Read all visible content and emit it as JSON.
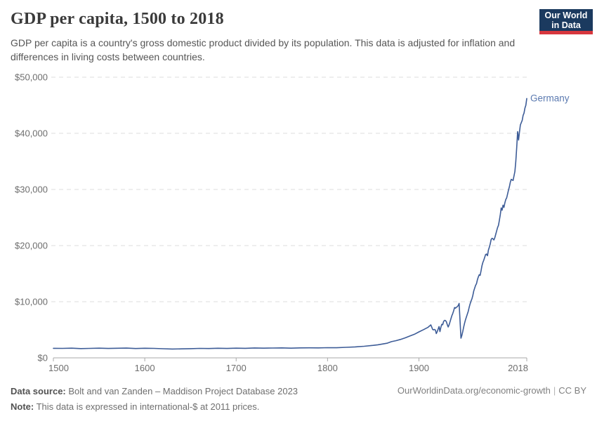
{
  "header": {
    "title": "GDP per capita, 1500 to 2018",
    "subtitle": "GDP per capita is a country's gross domestic product divided by its population. This data is adjusted for inflation and differences in living costs between countries.",
    "logo": {
      "line1": "Our World",
      "line2": "in Data",
      "bg_color": "#1b3a5f",
      "accent_color": "#d7373e"
    }
  },
  "chart_data": {
    "type": "line",
    "title": "GDP per capita, 1500 to 2018",
    "xlabel": "",
    "ylabel": "",
    "xlim": [
      1500,
      2018
    ],
    "ylim": [
      0,
      50000
    ],
    "grid": "horizontal-dashed",
    "x_ticks": [
      1500,
      1600,
      1700,
      1800,
      1900,
      2018
    ],
    "x_tick_labels": [
      "1500",
      "1600",
      "1700",
      "1800",
      "1900",
      "2018"
    ],
    "y_ticks": [
      0,
      10000,
      20000,
      30000,
      40000,
      50000
    ],
    "y_tick_labels": [
      "$0",
      "$10,000",
      "$20,000",
      "$30,000",
      "$40,000",
      "$50,000"
    ],
    "line_color": "#3d5c97",
    "label_color": "#5b7ab0",
    "grid_color": "#dcdcdc",
    "axis_color": "#a8a8a8",
    "tick_text_color": "#6e6e6e",
    "legend_position": "end-of-line",
    "series": [
      {
        "name": "Germany",
        "unit": "international-$ at 2011 prices",
        "points": [
          [
            1500,
            1700
          ],
          [
            1510,
            1690
          ],
          [
            1520,
            1720
          ],
          [
            1530,
            1650
          ],
          [
            1540,
            1690
          ],
          [
            1550,
            1730
          ],
          [
            1560,
            1670
          ],
          [
            1570,
            1710
          ],
          [
            1580,
            1740
          ],
          [
            1590,
            1660
          ],
          [
            1600,
            1710
          ],
          [
            1610,
            1690
          ],
          [
            1620,
            1630
          ],
          [
            1630,
            1570
          ],
          [
            1640,
            1600
          ],
          [
            1650,
            1640
          ],
          [
            1660,
            1690
          ],
          [
            1670,
            1660
          ],
          [
            1680,
            1710
          ],
          [
            1690,
            1670
          ],
          [
            1700,
            1730
          ],
          [
            1710,
            1700
          ],
          [
            1720,
            1760
          ],
          [
            1730,
            1720
          ],
          [
            1740,
            1750
          ],
          [
            1750,
            1770
          ],
          [
            1760,
            1730
          ],
          [
            1770,
            1770
          ],
          [
            1780,
            1790
          ],
          [
            1790,
            1770
          ],
          [
            1800,
            1810
          ],
          [
            1810,
            1800
          ],
          [
            1820,
            1870
          ],
          [
            1830,
            1950
          ],
          [
            1840,
            2060
          ],
          [
            1850,
            2230
          ],
          [
            1855,
            2320
          ],
          [
            1860,
            2460
          ],
          [
            1865,
            2600
          ],
          [
            1870,
            2890
          ],
          [
            1875,
            3060
          ],
          [
            1880,
            3290
          ],
          [
            1885,
            3560
          ],
          [
            1890,
            3890
          ],
          [
            1895,
            4200
          ],
          [
            1900,
            4630
          ],
          [
            1905,
            5020
          ],
          [
            1910,
            5450
          ],
          [
            1913,
            5880
          ],
          [
            1914,
            5480
          ],
          [
            1915,
            5060
          ],
          [
            1916,
            4990
          ],
          [
            1917,
            5060
          ],
          [
            1918,
            4950
          ],
          [
            1919,
            4320
          ],
          [
            1920,
            4680
          ],
          [
            1921,
            5130
          ],
          [
            1922,
            5570
          ],
          [
            1923,
            4680
          ],
          [
            1924,
            5440
          ],
          [
            1925,
            5980
          ],
          [
            1926,
            5900
          ],
          [
            1927,
            6490
          ],
          [
            1928,
            6680
          ],
          [
            1929,
            6650
          ],
          [
            1930,
            6440
          ],
          [
            1931,
            5940
          ],
          [
            1932,
            5500
          ],
          [
            1933,
            5860
          ],
          [
            1934,
            6400
          ],
          [
            1935,
            6950
          ],
          [
            1936,
            7490
          ],
          [
            1937,
            7890
          ],
          [
            1938,
            8380
          ],
          [
            1939,
            8960
          ],
          [
            1940,
            8850
          ],
          [
            1941,
            9020
          ],
          [
            1942,
            9100
          ],
          [
            1943,
            9320
          ],
          [
            1944,
            9700
          ],
          [
            1945,
            6600
          ],
          [
            1946,
            3500
          ],
          [
            1947,
            4000
          ],
          [
            1948,
            4700
          ],
          [
            1949,
            5500
          ],
          [
            1950,
            6200
          ],
          [
            1951,
            6800
          ],
          [
            1952,
            7300
          ],
          [
            1953,
            7800
          ],
          [
            1954,
            8300
          ],
          [
            1955,
            9000
          ],
          [
            1956,
            9600
          ],
          [
            1957,
            10100
          ],
          [
            1958,
            10500
          ],
          [
            1959,
            11100
          ],
          [
            1960,
            11900
          ],
          [
            1961,
            12400
          ],
          [
            1962,
            12900
          ],
          [
            1963,
            13200
          ],
          [
            1964,
            13900
          ],
          [
            1965,
            14400
          ],
          [
            1966,
            14800
          ],
          [
            1967,
            14700
          ],
          [
            1968,
            15500
          ],
          [
            1969,
            16400
          ],
          [
            1970,
            17000
          ],
          [
            1971,
            17400
          ],
          [
            1972,
            17900
          ],
          [
            1973,
            18400
          ],
          [
            1974,
            18500
          ],
          [
            1975,
            18200
          ],
          [
            1976,
            19200
          ],
          [
            1977,
            19700
          ],
          [
            1978,
            20300
          ],
          [
            1979,
            21100
          ],
          [
            1980,
            21300
          ],
          [
            1981,
            21200
          ],
          [
            1982,
            21000
          ],
          [
            1983,
            21400
          ],
          [
            1984,
            22000
          ],
          [
            1985,
            22600
          ],
          [
            1986,
            23200
          ],
          [
            1987,
            23600
          ],
          [
            1988,
            24500
          ],
          [
            1989,
            25500
          ],
          [
            1990,
            26700
          ],
          [
            1991,
            26300
          ],
          [
            1992,
            27200
          ],
          [
            1993,
            26800
          ],
          [
            1994,
            27600
          ],
          [
            1995,
            28200
          ],
          [
            1996,
            28500
          ],
          [
            1997,
            29200
          ],
          [
            1998,
            29900
          ],
          [
            1999,
            30500
          ],
          [
            2000,
            31300
          ],
          [
            2001,
            31800
          ],
          [
            2002,
            31700
          ],
          [
            2003,
            31600
          ],
          [
            2004,
            32400
          ],
          [
            2005,
            33200
          ],
          [
            2006,
            35000
          ],
          [
            2007,
            37500
          ],
          [
            2008,
            40300
          ],
          [
            2009,
            38800
          ],
          [
            2010,
            40200
          ],
          [
            2011,
            41500
          ],
          [
            2012,
            41900
          ],
          [
            2013,
            42300
          ],
          [
            2014,
            43200
          ],
          [
            2015,
            43600
          ],
          [
            2016,
            44500
          ],
          [
            2017,
            45000
          ],
          [
            2018,
            46200
          ]
        ]
      }
    ]
  },
  "footer": {
    "source_label": "Data source:",
    "source_text": "Bolt and van Zanden – Maddison Project Database 2023",
    "note_label": "Note:",
    "note_text": "This data is expressed in international-$ at 2011 prices.",
    "link_text": "OurWorldinData.org/economic-growth",
    "license_text": "CC BY"
  }
}
